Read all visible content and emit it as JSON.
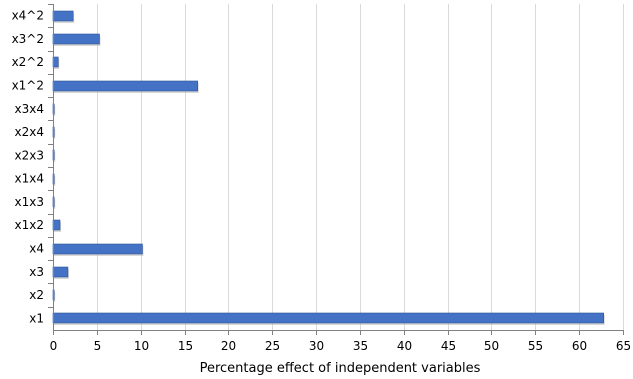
{
  "chart_data": {
    "type": "bar",
    "orientation": "horizontal",
    "categories": [
      "x1",
      "x2",
      "x3",
      "x4",
      "x1x2",
      "x1x3",
      "x1x4",
      "x2x3",
      "x2x4",
      "x3x4",
      "x1^2",
      "x2^2",
      "x3^2",
      "x4^2"
    ],
    "values": [
      62.8,
      0.1,
      1.7,
      10.2,
      0.8,
      0.1,
      0.1,
      0.1,
      0.1,
      0.1,
      16.5,
      0.6,
      5.3,
      2.3
    ],
    "title": "",
    "xlabel": "Percentage effect of independent variables",
    "ylabel": "",
    "xlim": [
      0,
      65
    ],
    "xticks": [
      "0",
      "5",
      "10",
      "15",
      "20",
      "25",
      "30",
      "35",
      "40",
      "45",
      "50",
      "55",
      "60",
      "65"
    ],
    "grid": "vertical",
    "legend": "none",
    "colors": {
      "bar": "#4472c4",
      "bar_edge": "#2f5597",
      "grid": "#d9d9d9",
      "axis": "#808080"
    }
  }
}
